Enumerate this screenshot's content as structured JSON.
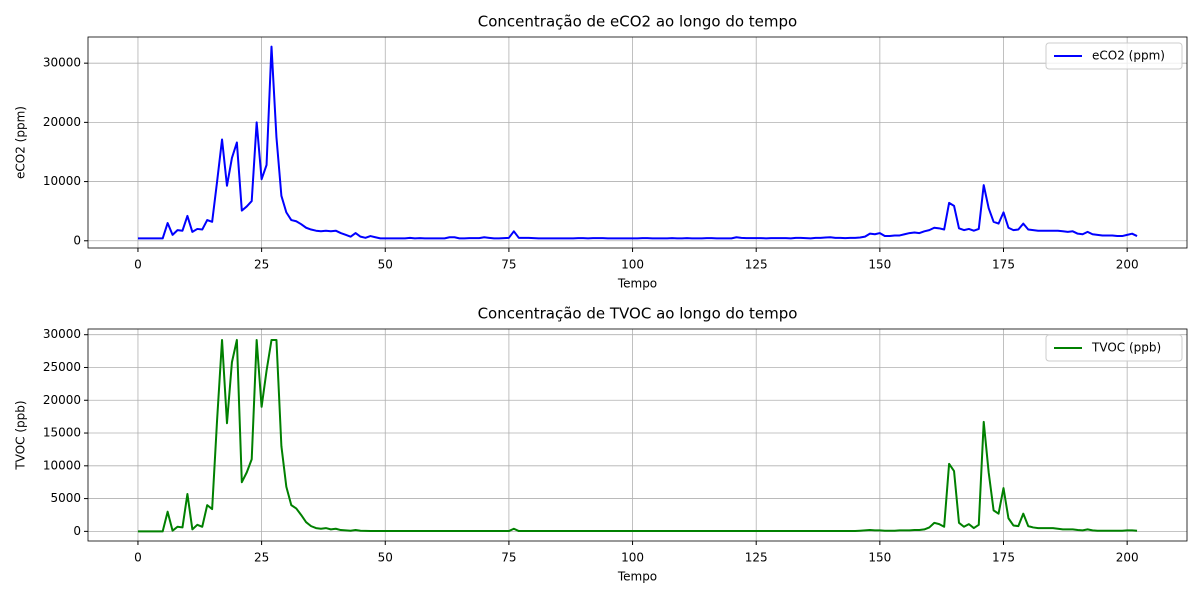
{
  "chart_data": [
    {
      "type": "line",
      "title": "Concentração de eCO2 ao longo do tempo",
      "xlabel": "Tempo",
      "ylabel": "eCO2 (ppm)",
      "x": [
        0,
        1,
        2,
        3,
        4,
        5,
        6,
        7,
        8,
        9,
        10,
        11,
        12,
        13,
        14,
        15,
        16,
        17,
        18,
        19,
        20,
        21,
        22,
        23,
        24,
        25,
        26,
        27,
        28,
        29,
        30,
        31,
        32,
        33,
        34,
        35,
        36,
        37,
        38,
        39,
        40,
        41,
        42,
        43,
        44,
        45,
        46,
        47,
        48,
        49,
        50,
        51,
        52,
        53,
        54,
        55,
        56,
        57,
        58,
        59,
        60,
        61,
        62,
        63,
        64,
        65,
        66,
        67,
        68,
        69,
        70,
        71,
        72,
        73,
        74,
        75,
        76,
        77,
        78,
        79,
        80,
        81,
        82,
        83,
        84,
        85,
        86,
        87,
        88,
        89,
        90,
        91,
        92,
        93,
        94,
        95,
        96,
        97,
        98,
        99,
        100,
        101,
        102,
        103,
        104,
        105,
        106,
        107,
        108,
        109,
        110,
        111,
        112,
        113,
        114,
        115,
        116,
        117,
        118,
        119,
        120,
        121,
        122,
        123,
        124,
        125,
        126,
        127,
        128,
        129,
        130,
        131,
        132,
        133,
        134,
        135,
        136,
        137,
        138,
        139,
        140,
        141,
        142,
        143,
        144,
        145,
        146,
        147,
        148,
        149,
        150,
        151,
        152,
        153,
        154,
        155,
        156,
        157,
        158,
        159,
        160,
        161,
        162,
        163,
        164,
        165,
        166,
        167,
        168,
        169,
        170,
        171,
        172,
        173,
        174,
        175,
        176,
        177,
        178,
        179,
        180,
        181,
        182,
        183,
        184,
        185,
        186,
        187,
        188,
        189,
        190,
        191,
        192,
        193,
        194,
        195,
        196,
        197,
        198,
        199,
        200,
        201,
        202
      ],
      "series": [
        {
          "name": "eCO2 (ppm)",
          "color": "#0000ff",
          "values": [
            400,
            400,
            400,
            400,
            400,
            400,
            3000,
            1000,
            1800,
            1700,
            4200,
            1500,
            2000,
            1900,
            3500,
            3200,
            10000,
            17100,
            9300,
            14000,
            16600,
            5100,
            5800,
            6700,
            20000,
            10400,
            12800,
            32800,
            17500,
            7600,
            4800,
            3500,
            3300,
            2800,
            2200,
            1900,
            1700,
            1600,
            1700,
            1600,
            1700,
            1300,
            1000,
            700,
            1300,
            700,
            500,
            800,
            600,
            400,
            400,
            400,
            400,
            400,
            400,
            500,
            400,
            450,
            400,
            400,
            400,
            400,
            400,
            600,
            600,
            400,
            400,
            450,
            450,
            450,
            600,
            500,
            400,
            400,
            450,
            500,
            1600,
            500,
            500,
            500,
            450,
            400,
            400,
            400,
            400,
            400,
            400,
            400,
            400,
            450,
            450,
            400,
            450,
            450,
            450,
            400,
            400,
            400,
            400,
            400,
            400,
            400,
            450,
            450,
            400,
            400,
            400,
            400,
            450,
            400,
            400,
            450,
            400,
            400,
            400,
            450,
            450,
            400,
            400,
            400,
            400,
            600,
            500,
            450,
            450,
            450,
            450,
            400,
            450,
            450,
            450,
            450,
            400,
            500,
            500,
            450,
            400,
            500,
            500,
            550,
            600,
            500,
            500,
            450,
            500,
            500,
            550,
            700,
            1200,
            1100,
            1300,
            800,
            800,
            900,
            900,
            1100,
            1300,
            1400,
            1300,
            1600,
            1800,
            2200,
            2100,
            1900,
            6400,
            5900,
            2100,
            1800,
            2000,
            1700,
            2000,
            9400,
            5500,
            3200,
            2900,
            4800,
            2200,
            1800,
            1900,
            2900,
            1900,
            1800,
            1700,
            1700,
            1700,
            1700,
            1700,
            1600,
            1500,
            1600,
            1200,
            1100,
            1500,
            1100,
            1000,
            900,
            900,
            900,
            800,
            800,
            1000,
            1200,
            800
          ]
        }
      ],
      "xlim": [
        -10.1,
        212.1
      ],
      "xticks": [
        0,
        25,
        50,
        75,
        100,
        125,
        150,
        175,
        200
      ],
      "ylim": [
        -1220,
        34420
      ],
      "yticks": [
        0,
        10000,
        20000,
        30000
      ],
      "grid": true,
      "legend": "upper right"
    },
    {
      "type": "line",
      "title": "Concentração de TVOC ao longo do tempo",
      "xlabel": "Tempo",
      "ylabel": "TVOC (ppb)",
      "x": [
        0,
        1,
        2,
        3,
        4,
        5,
        6,
        7,
        8,
        9,
        10,
        11,
        12,
        13,
        14,
        15,
        16,
        17,
        18,
        19,
        20,
        21,
        22,
        23,
        24,
        25,
        26,
        27,
        28,
        29,
        30,
        31,
        32,
        33,
        34,
        35,
        36,
        37,
        38,
        39,
        40,
        41,
        42,
        43,
        44,
        45,
        46,
        47,
        48,
        49,
        50,
        51,
        52,
        53,
        54,
        55,
        56,
        57,
        58,
        59,
        60,
        61,
        62,
        63,
        64,
        65,
        66,
        67,
        68,
        69,
        70,
        71,
        72,
        73,
        74,
        75,
        76,
        77,
        78,
        79,
        80,
        81,
        82,
        83,
        84,
        85,
        86,
        87,
        88,
        89,
        90,
        91,
        92,
        93,
        94,
        95,
        96,
        97,
        98,
        99,
        100,
        101,
        102,
        103,
        104,
        105,
        106,
        107,
        108,
        109,
        110,
        111,
        112,
        113,
        114,
        115,
        116,
        117,
        118,
        119,
        120,
        121,
        122,
        123,
        124,
        125,
        126,
        127,
        128,
        129,
        130,
        131,
        132,
        133,
        134,
        135,
        136,
        137,
        138,
        139,
        140,
        141,
        142,
        143,
        144,
        145,
        146,
        147,
        148,
        149,
        150,
        151,
        152,
        153,
        154,
        155,
        156,
        157,
        158,
        159,
        160,
        161,
        162,
        163,
        164,
        165,
        166,
        167,
        168,
        169,
        170,
        171,
        172,
        173,
        174,
        175,
        176,
        177,
        178,
        179,
        180,
        181,
        182,
        183,
        184,
        185,
        186,
        187,
        188,
        189,
        190,
        191,
        192,
        193,
        194,
        195,
        196,
        197,
        198,
        199,
        200,
        201,
        202
      ],
      "series": [
        {
          "name": "TVOC (ppb)",
          "color": "#008000",
          "values": [
            0,
            0,
            0,
            0,
            0,
            0,
            3000,
            100,
            700,
            600,
            5700,
            300,
            1000,
            700,
            4000,
            3400,
            17000,
            29200,
            16500,
            25800,
            29200,
            7500,
            9000,
            11000,
            29200,
            19000,
            24500,
            29200,
            29200,
            13000,
            6800,
            4000,
            3500,
            2500,
            1400,
            800,
            500,
            400,
            500,
            300,
            400,
            200,
            150,
            100,
            200,
            100,
            80,
            50,
            50,
            50,
            50,
            50,
            50,
            50,
            50,
            50,
            50,
            50,
            50,
            50,
            50,
            50,
            50,
            50,
            50,
            50,
            50,
            50,
            50,
            50,
            50,
            50,
            50,
            50,
            50,
            50,
            400,
            50,
            50,
            50,
            50,
            50,
            50,
            50,
            50,
            50,
            50,
            50,
            50,
            50,
            50,
            50,
            50,
            50,
            50,
            50,
            50,
            50,
            50,
            50,
            50,
            50,
            50,
            50,
            50,
            50,
            50,
            50,
            50,
            50,
            50,
            50,
            50,
            50,
            50,
            50,
            50,
            50,
            50,
            50,
            50,
            50,
            50,
            50,
            50,
            50,
            50,
            50,
            50,
            50,
            50,
            50,
            50,
            50,
            50,
            50,
            50,
            50,
            50,
            50,
            50,
            50,
            50,
            50,
            50,
            50,
            100,
            150,
            200,
            150,
            150,
            100,
            100,
            100,
            150,
            150,
            150,
            200,
            200,
            300,
            600,
            1300,
            1100,
            700,
            10300,
            9200,
            1300,
            700,
            1100,
            500,
            1000,
            16700,
            9000,
            3200,
            2700,
            6600,
            2000,
            900,
            800,
            2700,
            800,
            600,
            500,
            500,
            500,
            500,
            400,
            300,
            300,
            300,
            200,
            150,
            300,
            150,
            100,
            100,
            100,
            100,
            100,
            100,
            150,
            150,
            100
          ]
        }
      ],
      "xlim": [
        -10.1,
        212.1
      ],
      "xticks": [
        0,
        25,
        50,
        75,
        100,
        125,
        150,
        175,
        200
      ],
      "ylim": [
        -1470,
        30870
      ],
      "yticks": [
        0,
        5000,
        10000,
        15000,
        20000,
        25000,
        30000
      ],
      "grid": true,
      "legend": "upper right"
    }
  ]
}
